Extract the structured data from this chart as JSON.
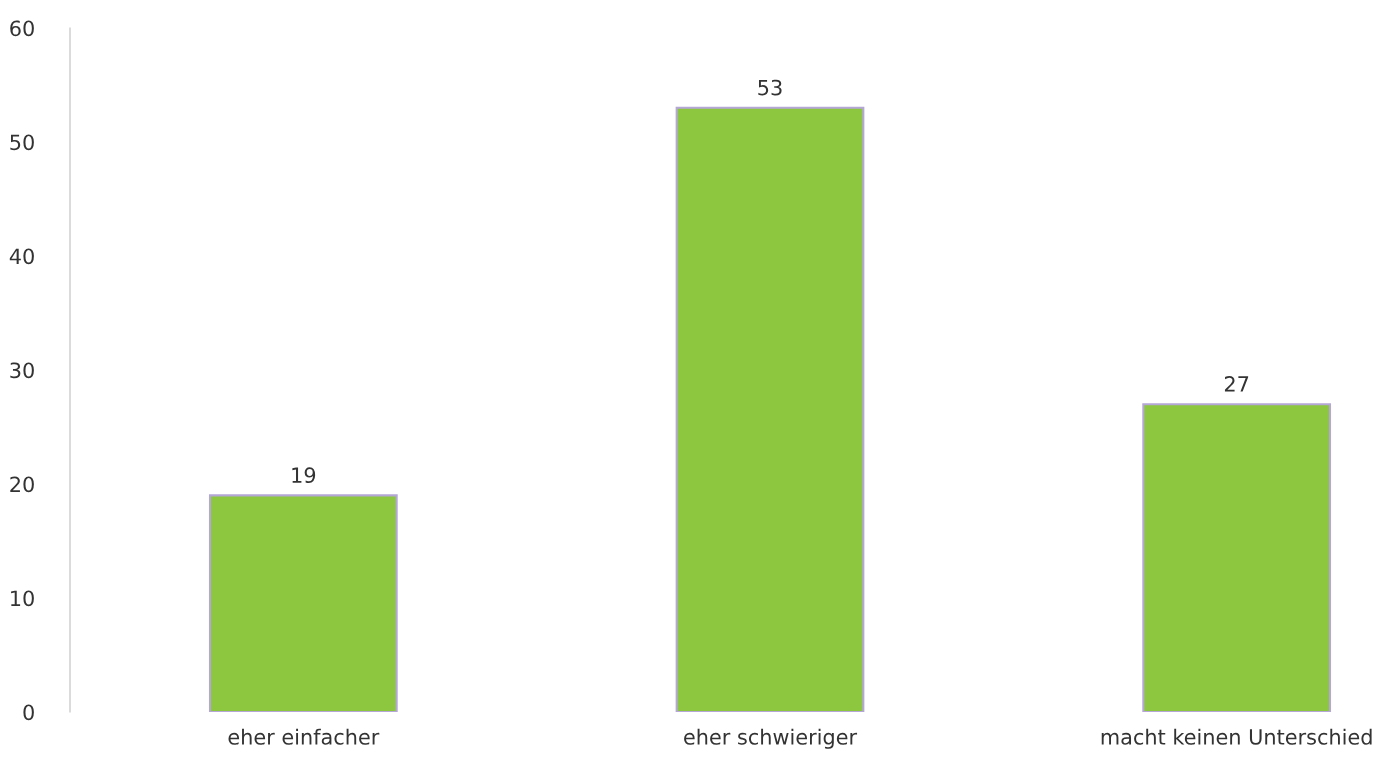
{
  "chart_data": {
    "type": "bar",
    "categories": [
      "eher einfacher",
      "eher schwieriger",
      "macht keinen Unterschied"
    ],
    "values": [
      19,
      53,
      27
    ],
    "color": "#8dc63f",
    "ylim": [
      0,
      60
    ],
    "yticks": [
      0,
      10,
      20,
      30,
      40,
      50,
      60
    ],
    "data_labels": true,
    "grid": false
  }
}
